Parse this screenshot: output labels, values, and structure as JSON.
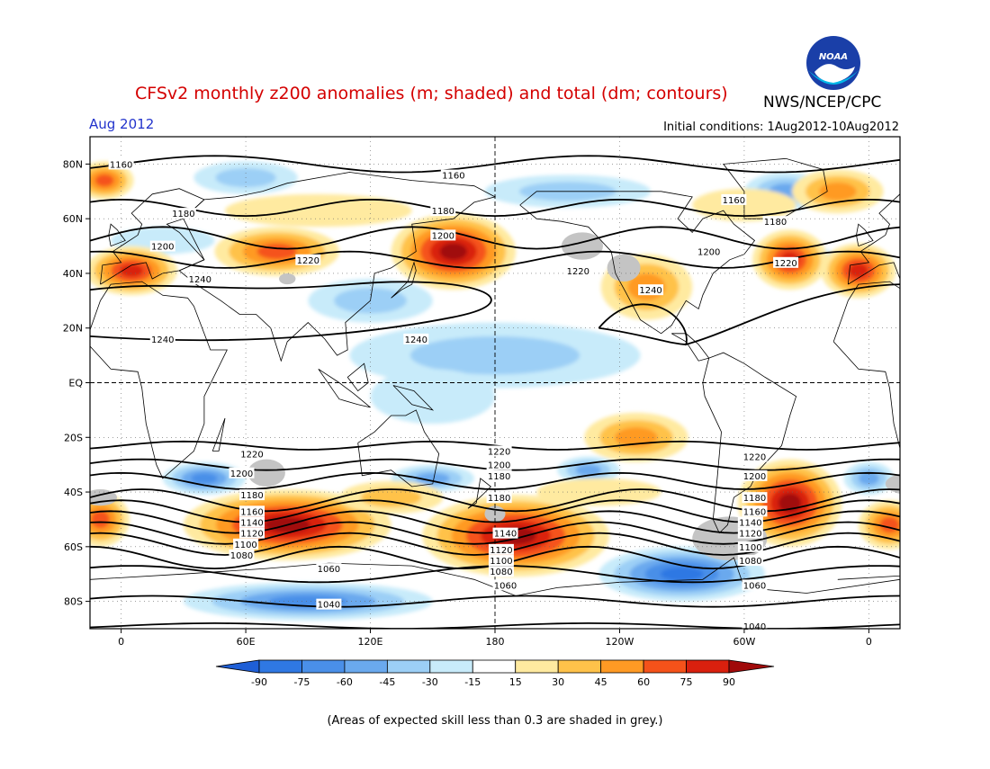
{
  "header": {
    "title": "CFSv2 monthly z200 anomalies (m; shaded) and total (dm; contours)",
    "agency": "NWS/NCEP/CPC",
    "logo_text": "NOAA",
    "month": "Aug 2012",
    "initial_conditions": "Initial conditions: 1Aug2012-10Aug2012"
  },
  "map": {
    "lat_labels": [
      "80N",
      "60N",
      "40N",
      "20N",
      "EQ",
      "20S",
      "40S",
      "60S",
      "80S"
    ],
    "lon_labels": [
      "0",
      "60E",
      "120E",
      "180",
      "120W",
      "60W",
      "0"
    ],
    "contour_labels": [
      {
        "text": "1160",
        "lon": 0,
        "lat": 80
      },
      {
        "text": "1160",
        "lon": 160,
        "lat": 76
      },
      {
        "text": "1160",
        "lon": 295,
        "lat": 67
      },
      {
        "text": "1180",
        "lon": 30,
        "lat": 62
      },
      {
        "text": "1180",
        "lon": 155,
        "lat": 63
      },
      {
        "text": "1180",
        "lon": 315,
        "lat": 59
      },
      {
        "text": "1200",
        "lon": 20,
        "lat": 50
      },
      {
        "text": "1200",
        "lon": 155,
        "lat": 54
      },
      {
        "text": "1200",
        "lon": 283,
        "lat": 48
      },
      {
        "text": "1220",
        "lon": 90,
        "lat": 45
      },
      {
        "text": "1220",
        "lon": 220,
        "lat": 41
      },
      {
        "text": "1220",
        "lon": 320,
        "lat": 44
      },
      {
        "text": "1240",
        "lon": 38,
        "lat": 38
      },
      {
        "text": "1240",
        "lon": 255,
        "lat": 34
      },
      {
        "text": "1240",
        "lon": 20,
        "lat": 16
      },
      {
        "text": "1240",
        "lon": 142,
        "lat": 16
      },
      {
        "text": "1220",
        "lon": 63,
        "lat": -26
      },
      {
        "text": "1220",
        "lon": 182,
        "lat": -25
      },
      {
        "text": "1220",
        "lon": 305,
        "lat": -27
      },
      {
        "text": "1200",
        "lon": 58,
        "lat": -33
      },
      {
        "text": "1200",
        "lon": 182,
        "lat": -30
      },
      {
        "text": "1200",
        "lon": 305,
        "lat": -34
      },
      {
        "text": "1180",
        "lon": 63,
        "lat": -41
      },
      {
        "text": "1180",
        "lon": 182,
        "lat": -34
      },
      {
        "text": "1180",
        "lon": 182,
        "lat": -42
      },
      {
        "text": "1180",
        "lon": 305,
        "lat": -42
      },
      {
        "text": "1160",
        "lon": 63,
        "lat": -47
      },
      {
        "text": "1160",
        "lon": 305,
        "lat": -47
      },
      {
        "text": "1140",
        "lon": 63,
        "lat": -51
      },
      {
        "text": "1140",
        "lon": 185,
        "lat": -55
      },
      {
        "text": "1140",
        "lon": 303,
        "lat": -51
      },
      {
        "text": "1120",
        "lon": 63,
        "lat": -55
      },
      {
        "text": "1120",
        "lon": 183,
        "lat": -61
      },
      {
        "text": "1120",
        "lon": 303,
        "lat": -55
      },
      {
        "text": "1100",
        "lon": 60,
        "lat": -59
      },
      {
        "text": "1100",
        "lon": 183,
        "lat": -65
      },
      {
        "text": "1100",
        "lon": 303,
        "lat": -60
      },
      {
        "text": "1080",
        "lon": 58,
        "lat": -63
      },
      {
        "text": "1080",
        "lon": 183,
        "lat": -69
      },
      {
        "text": "1080",
        "lon": 303,
        "lat": -65
      },
      {
        "text": "1060",
        "lon": 100,
        "lat": -68
      },
      {
        "text": "1060",
        "lon": 185,
        "lat": -74
      },
      {
        "text": "1060",
        "lon": 305,
        "lat": -74
      },
      {
        "text": "1040",
        "lon": 100,
        "lat": -81
      },
      {
        "text": "1040",
        "lon": 305,
        "lat": -89
      }
    ]
  },
  "colorbar": {
    "tick_labels": [
      "-90",
      "-75",
      "-60",
      "-45",
      "-30",
      "-15",
      "15",
      "30",
      "45",
      "60",
      "75",
      "90"
    ],
    "colors": [
      "#1f5fd6",
      "#2f78e3",
      "#4a8fe8",
      "#6aa9ee",
      "#9ccff6",
      "#c8ebfa",
      "#ffffff",
      "#ffeaa0",
      "#ffc24a",
      "#ff9a24",
      "#f5521a",
      "#d9200e",
      "#a00a0a"
    ]
  },
  "footnote": "(Areas of expected skill less than 0.3 are shaded in grey.)"
}
